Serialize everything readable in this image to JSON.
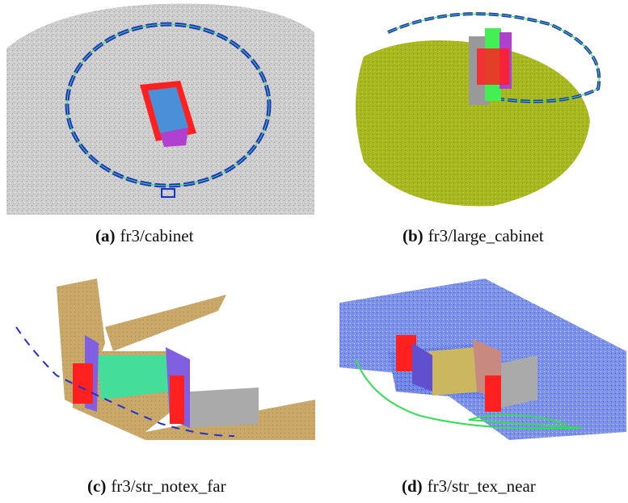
{
  "figure": {
    "subfigures": [
      {
        "label": "(a)",
        "caption": "fr3/cabinet"
      },
      {
        "label": "(b)",
        "caption": "fr3/large_cabinet"
      },
      {
        "label": "(c)",
        "caption": "fr3/str_notex_far"
      },
      {
        "label": "(d)",
        "caption": "fr3/str_tex_near"
      }
    ]
  }
}
